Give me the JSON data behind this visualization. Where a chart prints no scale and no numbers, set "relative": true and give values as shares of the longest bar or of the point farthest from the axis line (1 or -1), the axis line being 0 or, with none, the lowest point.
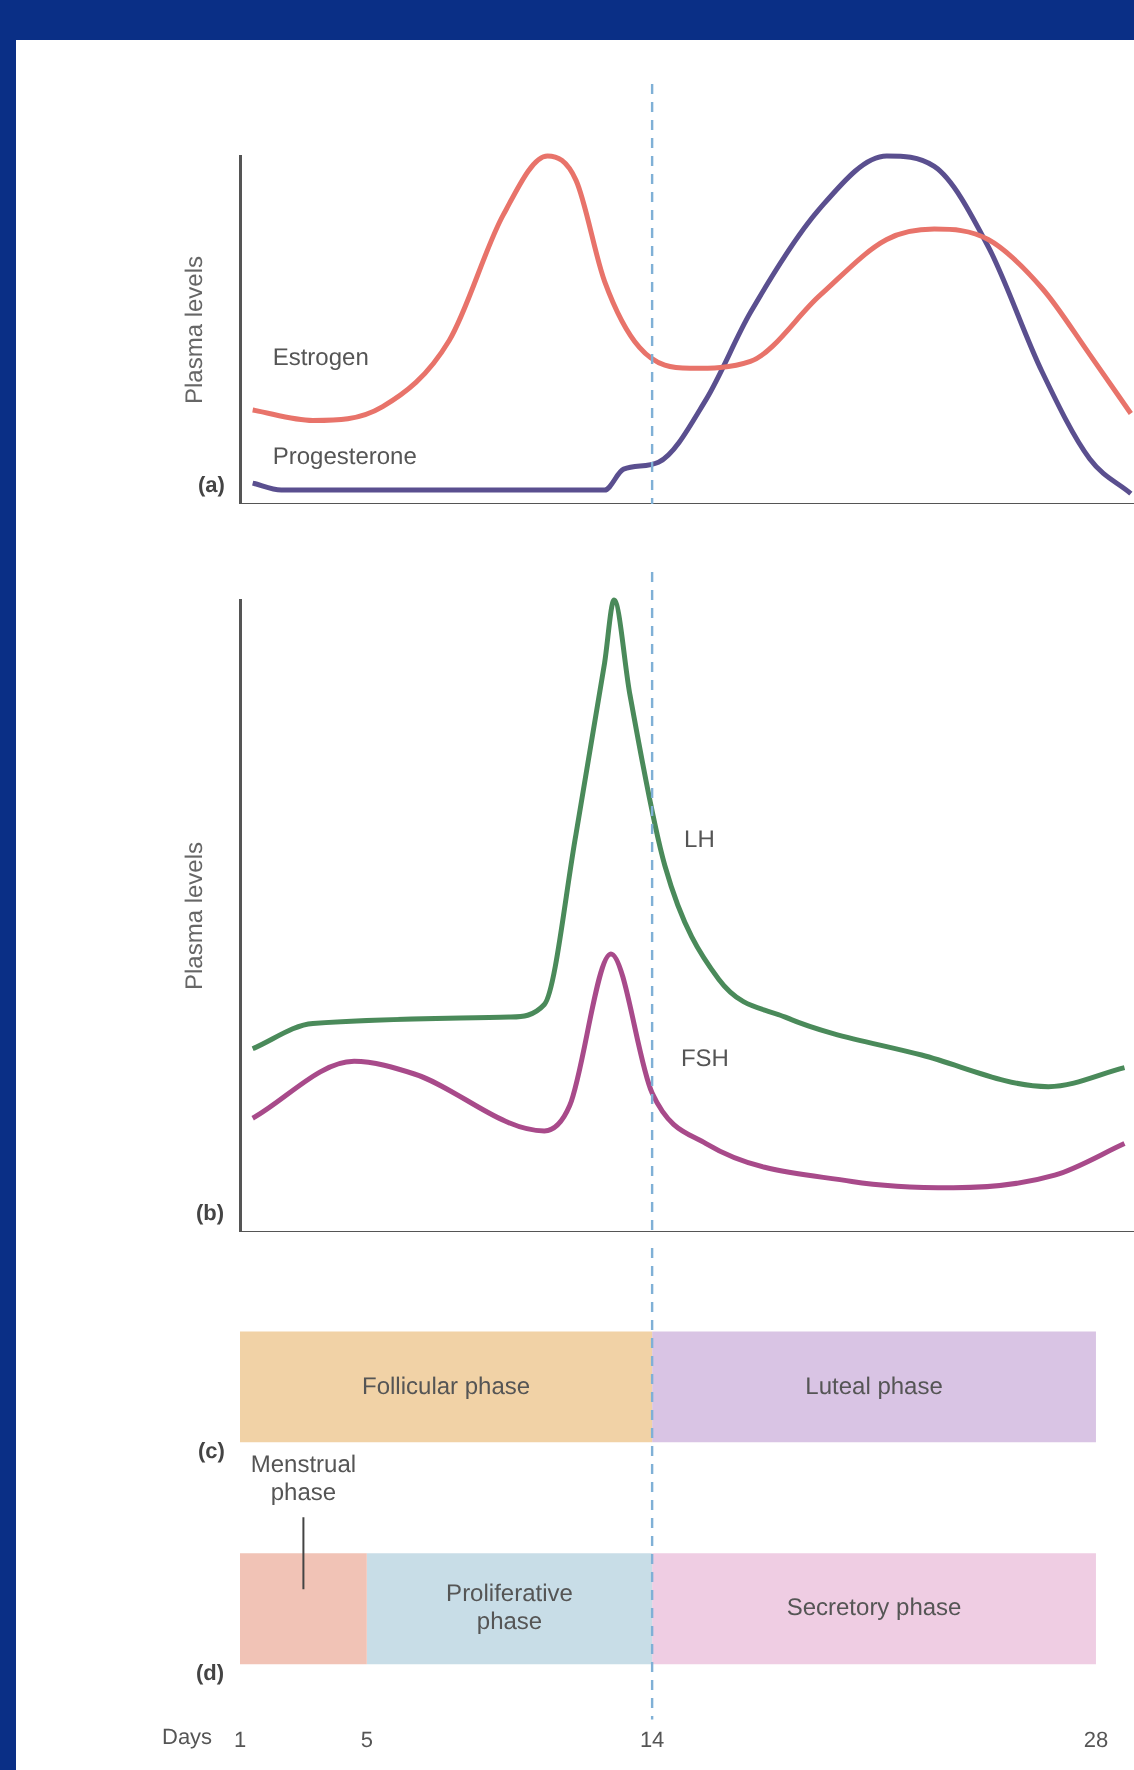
{
  "chart_data": [
    {
      "type": "line",
      "relative": true,
      "ylabel": "Plasma levels",
      "xlim": [
        1,
        29.2
      ],
      "tick_labels": false,
      "annotations": [
        "(a)"
      ],
      "ref_lines": [
        {
          "axis": "x",
          "value": 14,
          "color": "#7fb0d6",
          "line_style": "dashed"
        }
      ],
      "series": [
        {
          "name": "Estrogen",
          "color": "#e8736a",
          "x": [
            1.4,
            3.3,
            5.5,
            7.6,
            9.3,
            10.7,
            11.6,
            12.5,
            13.6,
            15.2,
            17.1,
            19.3,
            21.4,
            22.9,
            24.6,
            26.3,
            27.8,
            29.1
          ],
          "values": [
            0.27,
            0.24,
            0.28,
            0.47,
            0.83,
            1,
            0.93,
            0.64,
            0.45,
            0.39,
            0.41,
            0.6,
            0.76,
            0.79,
            0.76,
            0.62,
            0.43,
            0.26
          ]
        },
        {
          "name": "Progesterone",
          "color": "#5a4f8f",
          "x": [
            1.4,
            2.3,
            12.5,
            13.1,
            14.2,
            15.7,
            17.1,
            19.3,
            21.4,
            22.9,
            24.6,
            26.3,
            27.8,
            29.1
          ],
          "values": [
            0.06,
            0.04,
            0.04,
            0.1,
            0.12,
            0.3,
            0.55,
            0.85,
            1,
            0.97,
            0.74,
            0.38,
            0.13,
            0.03
          ]
        }
      ]
    },
    {
      "type": "line",
      "relative": true,
      "ylabel": "Plasma levels",
      "xlim": [
        1,
        29.2
      ],
      "tick_labels": false,
      "annotations": [
        "(b)"
      ],
      "ref_lines": [
        {
          "axis": "x",
          "value": 14,
          "color": "#7fb0d6",
          "line_style": "dashed"
        }
      ],
      "series": [
        {
          "name": "LH",
          "color": "#4a8a5a",
          "x": [
            1.4,
            3.3,
            9.5,
            10.6,
            11.6,
            12.5,
            12.8,
            13.3,
            14.4,
            16.1,
            18.2,
            22.5,
            26.5,
            28.9
          ],
          "values": [
            0.29,
            0.33,
            0.34,
            0.36,
            0.63,
            0.9,
            1,
            0.85,
            0.58,
            0.4,
            0.34,
            0.28,
            0.23,
            0.26
          ]
        },
        {
          "name": "FSH",
          "color": "#a84a8a",
          "x": [
            1.4,
            4.6,
            6.5,
            10.6,
            11.4,
            12.7,
            14,
            15.7,
            20.3,
            23.5,
            26.7,
            28.9
          ],
          "values": [
            0.18,
            0.27,
            0.25,
            0.16,
            0.2,
            0.44,
            0.22,
            0.14,
            0.08,
            0.07,
            0.09,
            0.14
          ]
        }
      ]
    },
    {
      "type": "bar",
      "orientation": "horizontal",
      "categories": [
        null,
        null
      ],
      "xlim": [
        1,
        29.2
      ],
      "xticks": [
        1,
        5,
        14,
        28
      ],
      "xlabel": "Days",
      "tick_labels": "x",
      "annotations": [
        "(c)",
        "(d)"
      ],
      "ref_lines": [
        {
          "axis": "x",
          "value": 14,
          "color": "#7fb0d6",
          "line_style": "dashed"
        }
      ],
      "series": [
        {
          "name": "Follicular phase",
          "color": "#f1d2a6",
          "values": [
            13,
            null
          ],
          "base": [
            1,
            null
          ]
        },
        {
          "name": "Luteal phase",
          "color": "#d9c4e4",
          "values": [
            14,
            null
          ],
          "base": [
            14,
            null
          ]
        },
        {
          "name": "Menstrual phase",
          "color": "#f1c3b6",
          "values": [
            null,
            4
          ],
          "base": [
            null,
            1
          ]
        },
        {
          "name": "Proliferative phase",
          "color": "#c8dde7",
          "values": [
            null,
            9
          ],
          "base": [
            null,
            5
          ]
        },
        {
          "name": "Secretory phase",
          "color": "#efcde3",
          "values": [
            null,
            14
          ],
          "base": [
            null,
            14
          ]
        }
      ]
    }
  ]
}
